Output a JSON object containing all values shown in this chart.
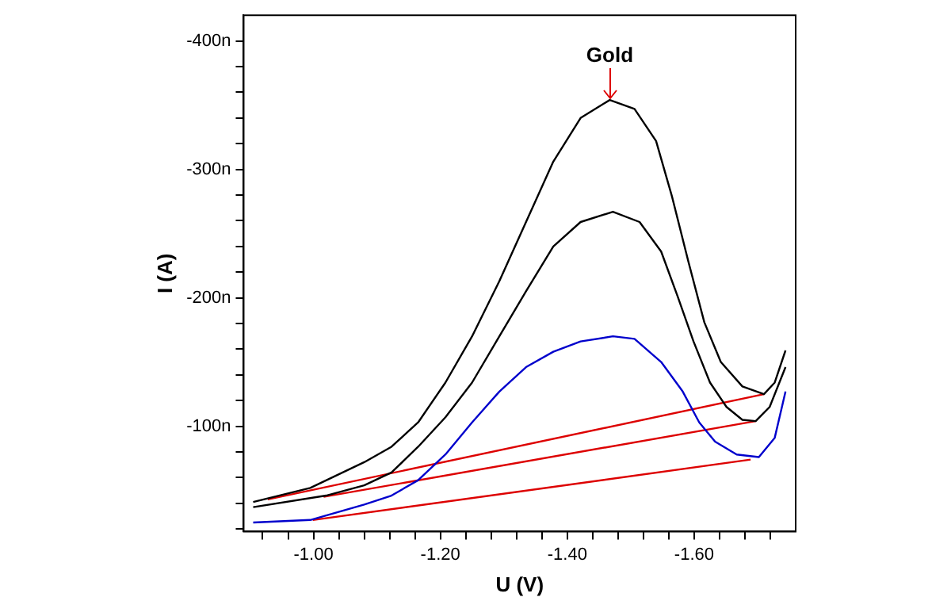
{
  "chart_data": {
    "type": "line",
    "xlabel": "U (V)",
    "ylabel": "I (A)",
    "xlim": [
      -0.89,
      -1.76
    ],
    "xticks": [
      {
        "value": -0.92,
        "label": null
      },
      {
        "value": -0.96,
        "label": null
      },
      {
        "value": -1,
        "label": "-1.00"
      },
      {
        "value": -1.04,
        "label": null
      },
      {
        "value": -1.08,
        "label": null
      },
      {
        "value": -1.12,
        "label": null
      },
      {
        "value": -1.16,
        "label": null
      },
      {
        "value": -1.2,
        "label": "-1.20"
      },
      {
        "value": -1.24,
        "label": null
      },
      {
        "value": -1.28,
        "label": null
      },
      {
        "value": -1.32,
        "label": null
      },
      {
        "value": -1.36,
        "label": null
      },
      {
        "value": -1.4,
        "label": "-1.40"
      },
      {
        "value": -1.44,
        "label": null
      },
      {
        "value": -1.48,
        "label": null
      },
      {
        "value": -1.52,
        "label": null
      },
      {
        "value": -1.56,
        "label": null
      },
      {
        "value": -1.6,
        "label": "-1.60"
      },
      {
        "value": -1.64,
        "label": null
      },
      {
        "value": -1.68,
        "label": null
      },
      {
        "value": -1.72,
        "label": null
      }
    ],
    "ylim": [
      -18,
      -420
    ],
    "yticks": [
      {
        "value": -20,
        "label": null
      },
      {
        "value": -40,
        "label": null
      },
      {
        "value": -60,
        "label": null
      },
      {
        "value": -80,
        "label": null
      },
      {
        "value": -100,
        "label": "-100n"
      },
      {
        "value": -120,
        "label": null
      },
      {
        "value": -140,
        "label": null
      },
      {
        "value": -160,
        "label": null
      },
      {
        "value": -180,
        "label": null
      },
      {
        "value": -200,
        "label": "-200n"
      },
      {
        "value": -220,
        "label": null
      },
      {
        "value": -240,
        "label": null
      },
      {
        "value": -260,
        "label": null
      },
      {
        "value": -280,
        "label": null
      },
      {
        "value": -300,
        "label": "-300n"
      },
      {
        "value": -320,
        "label": null
      },
      {
        "value": -340,
        "label": null
      },
      {
        "value": -360,
        "label": null
      },
      {
        "value": -380,
        "label": null
      },
      {
        "value": -400,
        "label": "-400n"
      }
    ],
    "grid": false,
    "legend": false,
    "marker": "none",
    "line_style": "solid",
    "annotations": [
      {
        "text": "Gold",
        "x": -1.467,
        "y": -354
      }
    ],
    "series": [
      {
        "color": "#000000",
        "x": [
          -0.905,
          -0.995,
          -1.08,
          -1.123,
          -1.165,
          -1.208,
          -1.25,
          -1.293,
          -1.335,
          -1.378,
          -1.421,
          -1.467,
          -1.506,
          -1.54,
          -1.565,
          -1.591,
          -1.616,
          -1.642,
          -1.676,
          -1.71,
          -1.727,
          -1.744
        ],
        "values": [
          -41,
          -52,
          -72,
          -84,
          -103,
          -134,
          -170,
          -213,
          -259,
          -306,
          -340,
          -354,
          -347,
          -322,
          -279,
          -228,
          -181,
          -150,
          -131,
          -125,
          -134,
          -159
        ]
      },
      {
        "color": "#000000",
        "x": [
          -0.905,
          -1.02,
          -1.08,
          -1.123,
          -1.165,
          -1.208,
          -1.25,
          -1.293,
          -1.335,
          -1.378,
          -1.421,
          -1.472,
          -1.514,
          -1.548,
          -1.574,
          -1.599,
          -1.625,
          -1.651,
          -1.676,
          -1.697,
          -1.719,
          -1.744
        ],
        "values": [
          -37,
          -46,
          -54,
          -64,
          -84,
          -107,
          -134,
          -170,
          -205,
          -240,
          -259,
          -267,
          -259,
          -236,
          -201,
          -166,
          -134,
          -115,
          -105,
          -104,
          -115,
          -146
        ]
      },
      {
        "color": "#0000cc",
        "x": [
          -0.905,
          -0.995,
          -1.08,
          -1.123,
          -1.165,
          -1.208,
          -1.25,
          -1.293,
          -1.335,
          -1.378,
          -1.421,
          -1.472,
          -1.506,
          -1.548,
          -1.582,
          -1.608,
          -1.633,
          -1.667,
          -1.702,
          -1.727,
          -1.744
        ],
        "values": [
          -25,
          -27,
          -39,
          -46,
          -58,
          -78,
          -103,
          -127,
          -146,
          -158,
          -166,
          -170,
          -168,
          -150,
          -127,
          -103,
          -88,
          -78,
          -76,
          -91,
          -127
        ]
      },
      {
        "color": "#dd0000",
        "x": [
          -0.928,
          -1.71
        ],
        "values": [
          -43,
          -125
        ]
      },
      {
        "color": "#dd0000",
        "x": [
          -1.016,
          -1.697
        ],
        "values": [
          -45,
          -104
        ]
      },
      {
        "color": "#dd0000",
        "x": [
          -0.999,
          -1.689
        ],
        "values": [
          -27,
          -74
        ]
      }
    ]
  }
}
